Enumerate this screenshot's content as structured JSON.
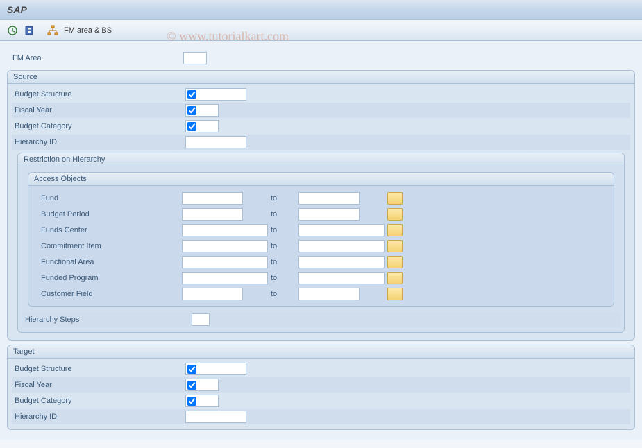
{
  "title": "SAP",
  "toolbar": {
    "fm_area_bs_label": "FM area & BS"
  },
  "watermark": "© www.tutorialkart.com",
  "top": {
    "fm_area_label": "FM Area",
    "fm_area_value": ""
  },
  "source": {
    "title": "Source",
    "budget_structure_label": "Budget Structure",
    "budget_structure_checked": true,
    "fiscal_year_label": "Fiscal Year",
    "fiscal_year_checked": true,
    "budget_category_label": "Budget Category",
    "budget_category_checked": true,
    "hierarchy_id_label": "Hierarchy ID",
    "hierarchy_id_value": "",
    "restriction_title": "Restriction on Hierarchy",
    "access_objects_title": "Access Objects",
    "to_label": "to",
    "ranges": [
      {
        "label": "Fund",
        "from": "",
        "to": "",
        "width": "std"
      },
      {
        "label": "Budget Period",
        "from": "",
        "to": "",
        "width": "std"
      },
      {
        "label": "Funds Center",
        "from": "",
        "to": "",
        "width": "wide"
      },
      {
        "label": "Commitment Item",
        "from": "",
        "to": "",
        "width": "wide"
      },
      {
        "label": "Functional Area",
        "from": "",
        "to": "",
        "width": "wide"
      },
      {
        "label": "Funded Program",
        "from": "",
        "to": "",
        "width": "wide"
      },
      {
        "label": "Customer Field",
        "from": "",
        "to": "",
        "width": "std"
      }
    ],
    "hierarchy_steps_label": "Hierarchy Steps",
    "hierarchy_steps_value": ""
  },
  "target": {
    "title": "Target",
    "budget_structure_label": "Budget Structure",
    "budget_structure_checked": true,
    "fiscal_year_label": "Fiscal Year",
    "fiscal_year_checked": true,
    "budget_category_label": "Budget Category",
    "budget_category_checked": true,
    "hierarchy_id_label": "Hierarchy ID",
    "hierarchy_id_value": ""
  },
  "colors": {
    "page_bg": "#eaf1f8",
    "group_bg": "#d9e5f0",
    "border": "#a9bfd6",
    "label_text": "#3b5a7a",
    "multi_btn_top": "#fce9a8",
    "multi_btn_bottom": "#f5d274"
  }
}
